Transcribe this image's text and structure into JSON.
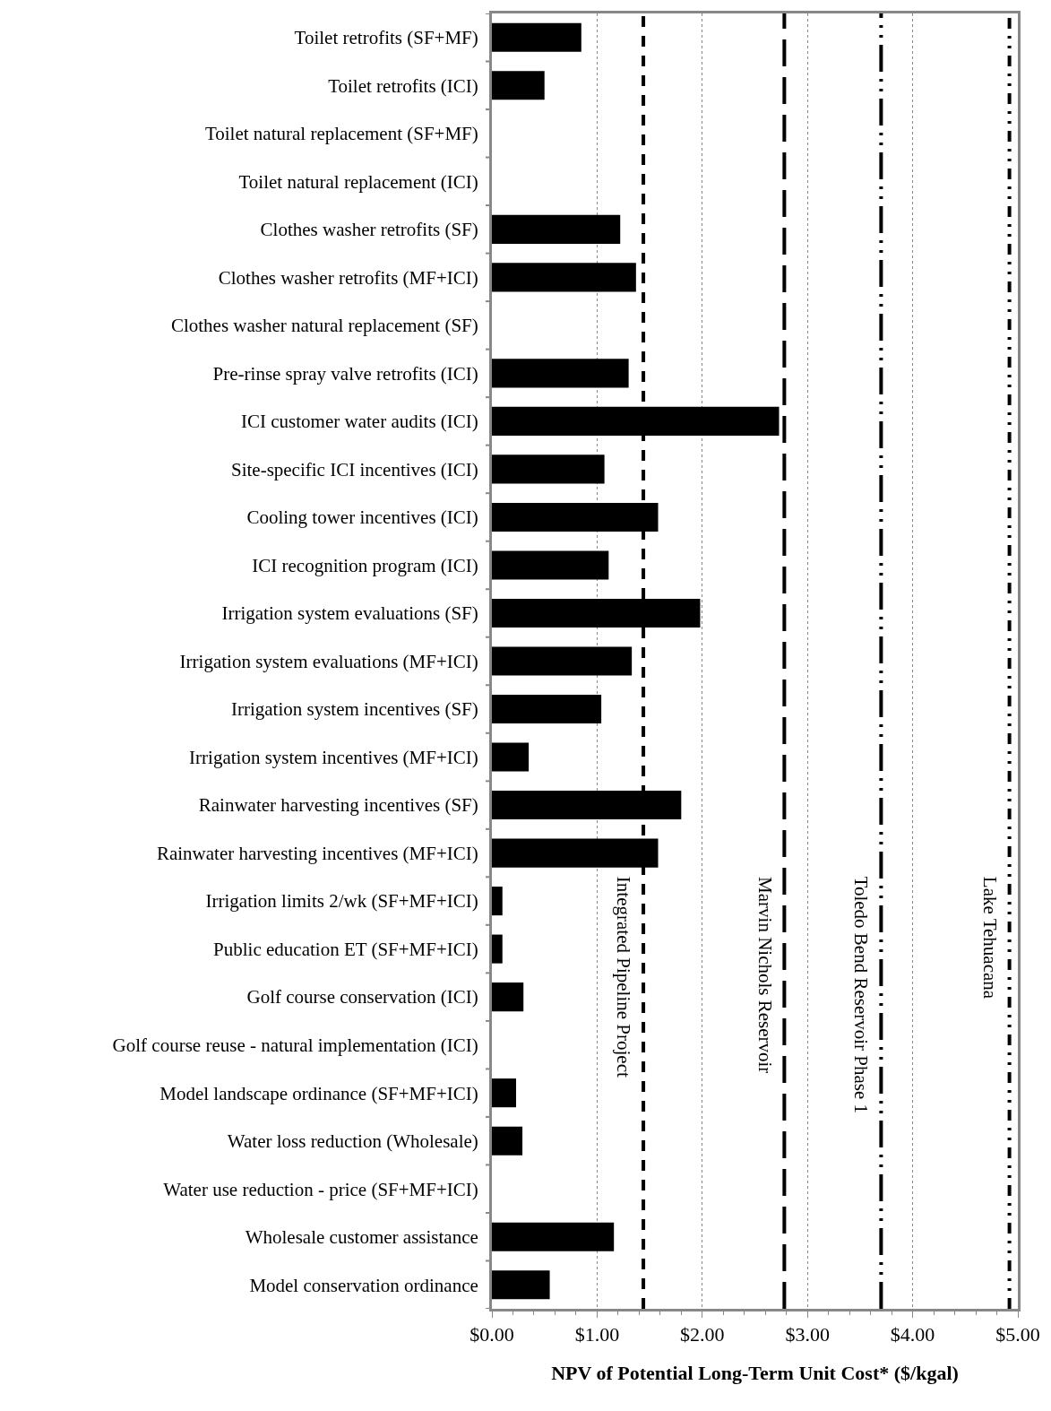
{
  "chart_data": {
    "type": "bar",
    "orientation": "horizontal",
    "xlabel": "NPV of Potential Long-Term Unit Cost* ($/kgal)",
    "categories": [
      "Toilet retrofits (SF+MF)",
      "Toilet retrofits (ICI)",
      "Toilet natural replacement (SF+MF)",
      "Toilet natural replacement (ICI)",
      "Clothes washer retrofits (SF)",
      "Clothes washer retrofits (MF+ICI)",
      "Clothes washer natural replacement (SF)",
      "Pre-rinse spray valve retrofits (ICI)",
      "ICI customer water audits (ICI)",
      "Site-specific ICI incentives (ICI)",
      "Cooling tower incentives (ICI)",
      "ICI recognition program (ICI)",
      "Irrigation system evaluations (SF)",
      "Irrigation system evaluations (MF+ICI)",
      "Irrigation system incentives (SF)",
      "Irrigation system incentives (MF+ICI)",
      "Rainwater harvesting incentives (SF)",
      "Rainwater harvesting incentives (MF+ICI)",
      "Irrigation limits 2/wk (SF+MF+ICI)",
      "Public education ET (SF+MF+ICI)",
      "Golf course conservation (ICI)",
      "Golf course reuse - natural implementation (ICI)",
      "Model landscape ordinance (SF+MF+ICI)",
      "Water loss reduction (Wholesale)",
      "Water use reduction - price (SF+MF+ICI)",
      "Wholesale customer assistance",
      "Model conservation ordinance"
    ],
    "values": [
      0.85,
      0.5,
      null,
      null,
      1.22,
      1.37,
      null,
      1.3,
      2.73,
      1.07,
      1.58,
      1.11,
      1.98,
      1.33,
      1.04,
      0.35,
      1.8,
      1.58,
      0.1,
      0.1,
      0.3,
      null,
      0.23,
      0.29,
      null,
      1.16,
      0.55
    ],
    "color": "#000000",
    "xlim": [
      0,
      5
    ],
    "xticks": [
      {
        "value": 0,
        "label": "$0.00"
      },
      {
        "value": 1,
        "label": "$1.00"
      },
      {
        "value": 2,
        "label": "$2.00"
      },
      {
        "value": 3,
        "label": "$3.00"
      },
      {
        "value": 4,
        "label": "$4.00"
      },
      {
        "value": 5,
        "label": "$5.00"
      }
    ],
    "grid": "x",
    "ref_lines": [
      {
        "axis": "x",
        "value": 1.44,
        "label": "Integrated Pipeline Project",
        "line_style": "dashed",
        "color": "#000000"
      },
      {
        "axis": "x",
        "value": 2.78,
        "label": "Marvin Nichols Reservoir",
        "line_style": "longdash",
        "color": "#000000"
      },
      {
        "axis": "x",
        "value": 3.7,
        "label": "Toledo Bend Reservoir Phase 1",
        "line_style": "longdashdot",
        "color": "#000000"
      },
      {
        "axis": "x",
        "value": 4.92,
        "label": "Lake Tehuacana",
        "line_style": "dashdot",
        "color": "#000000"
      }
    ]
  }
}
